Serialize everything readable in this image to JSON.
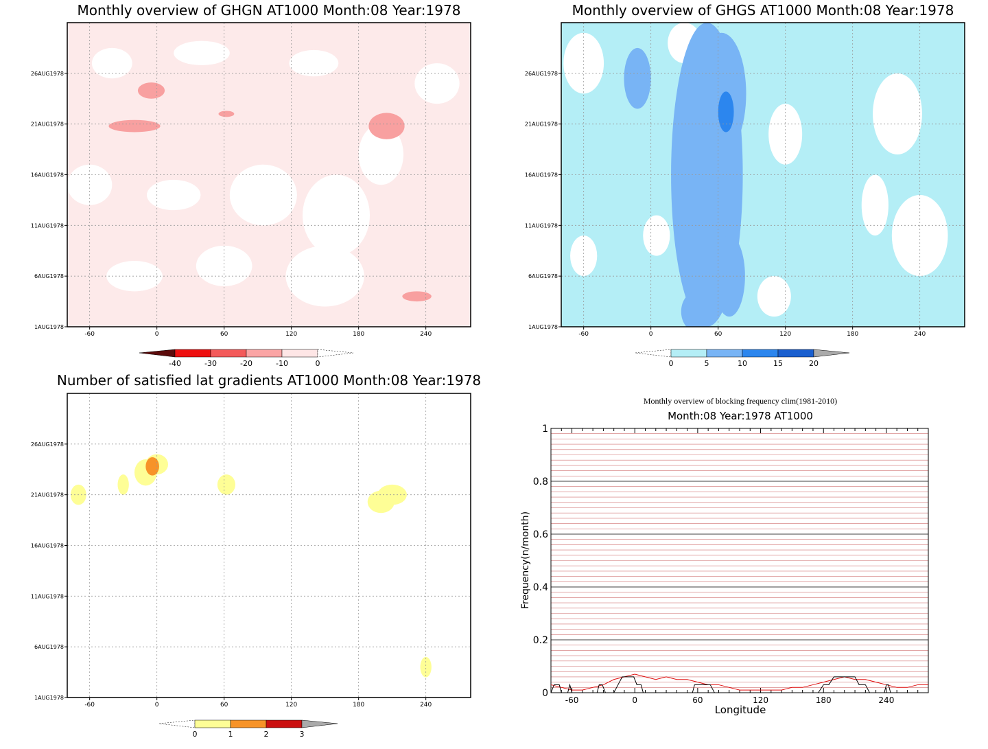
{
  "chart_data": [
    {
      "type": "heatmap",
      "title": "Monthly overview of GHGN AT1000 Month:08 Year:1978",
      "x_ticks": [
        "-60",
        "0",
        "60",
        "120",
        "180",
        "240"
      ],
      "x_tick_values": [
        -60,
        0,
        60,
        120,
        180,
        240
      ],
      "y_ticks": [
        "1AUG1978",
        "6AUG1978",
        "11AUG1978",
        "16AUG1978",
        "21AUG1978",
        "26AUG1978"
      ],
      "y_tick_values": [
        1,
        6,
        11,
        16,
        21,
        26
      ],
      "xlim": [
        -80,
        280
      ],
      "ylim": [
        1,
        31
      ],
      "grid": true,
      "colorbar": {
        "labels": [
          "-40",
          "-30",
          "-20",
          "-10",
          "0"
        ],
        "colors": [
          "#5c0b0b",
          "#ee1010",
          "#f35a5a",
          "#fba5a5",
          "#fee6e6"
        ]
      },
      "background_color": "#fdeaea",
      "blobs": [
        {
          "x": -20,
          "y": 20.8,
          "rx": 23,
          "ry": 0.6,
          "color": "#f8a0a0"
        },
        {
          "x": -5,
          "y": 24.3,
          "rx": 12,
          "ry": 0.8,
          "color": "#f8a0a0"
        },
        {
          "x": 62,
          "y": 22.0,
          "rx": 7,
          "ry": 0.3,
          "color": "#f8a0a0"
        },
        {
          "x": 205,
          "y": 20.8,
          "rx": 16,
          "ry": 1.3,
          "color": "#f8a0a0"
        },
        {
          "x": 232,
          "y": 4.0,
          "rx": 13,
          "ry": 0.5,
          "color": "#f8a0a0"
        }
      ]
    },
    {
      "type": "heatmap",
      "title": "Monthly overview of GHGS AT1000 Month:08 Year:1978",
      "x_ticks": [
        "-60",
        "0",
        "60",
        "120",
        "180",
        "240"
      ],
      "x_tick_values": [
        -60,
        0,
        60,
        120,
        180,
        240
      ],
      "y_ticks": [
        "1AUG1978",
        "6AUG1978",
        "11AUG1978",
        "16AUG1978",
        "21AUG1978",
        "26AUG1978"
      ],
      "y_tick_values": [
        1,
        6,
        11,
        16,
        21,
        26
      ],
      "xlim": [
        -80,
        280
      ],
      "ylim": [
        1,
        31
      ],
      "grid": true,
      "colorbar": {
        "labels": [
          "0",
          "5",
          "10",
          "15",
          "20"
        ],
        "colors": [
          "#b4eef6",
          "#78b4f5",
          "#2c86ee",
          "#1a5fcf",
          "#aaaaaa"
        ]
      },
      "background_color": "#b4eef6",
      "blobs": [
        {
          "x": 50,
          "y": 16,
          "rx": 32,
          "ry": 15,
          "color": "#78b4f5"
        },
        {
          "x": 63,
          "y": 24,
          "rx": 22,
          "ry": 6,
          "color": "#78b4f5"
        },
        {
          "x": -12,
          "y": 25.5,
          "rx": 12,
          "ry": 3,
          "color": "#78b4f5"
        },
        {
          "x": 66,
          "y": 12,
          "rx": 12,
          "ry": 3,
          "color": "#78b4f5"
        },
        {
          "x": 70,
          "y": 6,
          "rx": 14,
          "ry": 4,
          "color": "#78b4f5"
        },
        {
          "x": 41,
          "y": 2.5,
          "rx": 14,
          "ry": 2,
          "color": "#78b4f5"
        },
        {
          "x": 67,
          "y": 22.2,
          "rx": 7,
          "ry": 2,
          "color": "#2c86ee"
        }
      ]
    },
    {
      "type": "heatmap",
      "title": "Number of satisfied lat gradients AT1000 Month:08 Year:1978",
      "x_ticks": [
        "-60",
        "0",
        "60",
        "120",
        "180",
        "240"
      ],
      "x_tick_values": [
        -60,
        0,
        60,
        120,
        180,
        240
      ],
      "y_ticks": [
        "1AUG1978",
        "6AUG1978",
        "11AUG1978",
        "16AUG1978",
        "21AUG1978",
        "26AUG1978"
      ],
      "y_tick_values": [
        1,
        6,
        11,
        16,
        21,
        26
      ],
      "xlim": [
        -80,
        280
      ],
      "ylim": [
        1,
        31
      ],
      "grid": true,
      "colorbar": {
        "labels": [
          "0",
          "1",
          "2",
          "3"
        ],
        "colors": [
          "#fefe96",
          "#f79328",
          "#cb1010",
          "#aaaaaa"
        ]
      },
      "background_color": "#ffffff",
      "blobs": [
        {
          "x": -70,
          "y": 21,
          "rx": 7,
          "ry": 1,
          "color": "#fefe96"
        },
        {
          "x": -30,
          "y": 22,
          "rx": 5,
          "ry": 1,
          "color": "#fefe96"
        },
        {
          "x": -10,
          "y": 23.2,
          "rx": 10,
          "ry": 1.3,
          "color": "#fefe96"
        },
        {
          "x": 0,
          "y": 24,
          "rx": 10,
          "ry": 1,
          "color": "#fefe96"
        },
        {
          "x": -4,
          "y": 23.8,
          "rx": 6,
          "ry": 0.9,
          "color": "#f79328"
        },
        {
          "x": 62,
          "y": 22,
          "rx": 8,
          "ry": 1,
          "color": "#fefe96"
        },
        {
          "x": 200,
          "y": 20.3,
          "rx": 12,
          "ry": 1.1,
          "color": "#fefe96"
        },
        {
          "x": 210,
          "y": 21,
          "rx": 13,
          "ry": 1,
          "color": "#fefe96"
        },
        {
          "x": 240,
          "y": 4.0,
          "rx": 5,
          "ry": 1,
          "color": "#fefe96"
        }
      ]
    },
    {
      "type": "line",
      "title": "Monthly overview of blocking frequency clim(1981-2010)",
      "subtitle": "Month:08 Year:1978  AT1000",
      "xlabel": "Longitude",
      "ylabel": "Frequency(n/month)",
      "x_ticks": [
        "-60",
        "0",
        "60",
        "120",
        "180",
        "240"
      ],
      "x_tick_values": [
        -60,
        0,
        60,
        120,
        180,
        240
      ],
      "y_ticks": [
        "0",
        "0.2",
        "0.4",
        "0.6",
        "0.8",
        "1"
      ],
      "y_tick_values": [
        0,
        0.2,
        0.4,
        0.6,
        0.8,
        1
      ],
      "xlim": [
        -80,
        280
      ],
      "ylim": [
        0,
        1
      ],
      "grid": true,
      "series": [
        {
          "color": "#e01010",
          "x": [
            -80,
            -70,
            -60,
            -50,
            -40,
            -30,
            -20,
            -10,
            0,
            10,
            20,
            30,
            40,
            50,
            60,
            70,
            80,
            90,
            100,
            110,
            120,
            130,
            140,
            150,
            160,
            170,
            180,
            190,
            200,
            210,
            220,
            230,
            240,
            250,
            260,
            270,
            280
          ],
          "values": [
            0.03,
            0.02,
            0.01,
            0.01,
            0.02,
            0.03,
            0.05,
            0.06,
            0.07,
            0.06,
            0.05,
            0.06,
            0.05,
            0.05,
            0.04,
            0.03,
            0.03,
            0.02,
            0.01,
            0.01,
            0.01,
            0.01,
            0.01,
            0.02,
            0.02,
            0.03,
            0.04,
            0.05,
            0.06,
            0.05,
            0.05,
            0.04,
            0.03,
            0.02,
            0.02,
            0.03,
            0.03
          ]
        },
        {
          "color": "#000000",
          "x": [
            -80,
            -77,
            -74,
            -72,
            -70,
            -64,
            -62,
            -60,
            -40,
            -36,
            -34,
            -31,
            -28,
            -20,
            -16,
            -12,
            -5,
            -1,
            2,
            6,
            8,
            55,
            57,
            61,
            64,
            72,
            76,
            175,
            180,
            185,
            190,
            195,
            210,
            214,
            217,
            220,
            224,
            238,
            240,
            242,
            244,
            248,
            280
          ],
          "values": [
            0,
            0.03,
            0.03,
            0.03,
            0,
            0,
            0.03,
            0,
            0,
            0,
            0.03,
            0.03,
            0,
            0,
            0.03,
            0.06,
            0.06,
            0.06,
            0.03,
            0.03,
            0,
            0,
            0.03,
            0.03,
            0.03,
            0.03,
            0,
            0,
            0.03,
            0.03,
            0.06,
            0.06,
            0.06,
            0.03,
            0.03,
            0.03,
            0,
            0,
            0.03,
            0.03,
            0,
            0,
            0
          ]
        }
      ]
    }
  ]
}
